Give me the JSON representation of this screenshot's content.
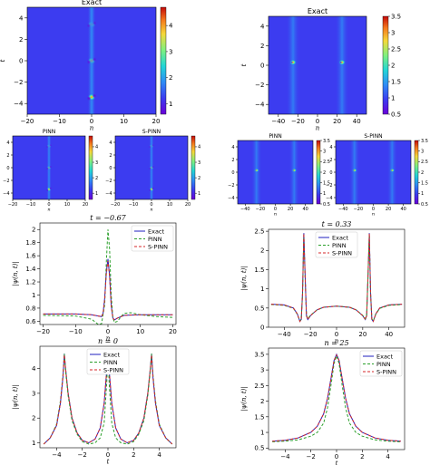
{
  "chart_data": [
    {
      "id": "hm_left_exact",
      "type": "heatmap",
      "title": "Exact",
      "xlabel": "n",
      "ylabel": "t",
      "xlim": [
        -20,
        20
      ],
      "ylim": [
        -5,
        5
      ],
      "xticks": [
        -20,
        -10,
        0,
        10,
        20
      ],
      "yticks": [
        -4,
        -2,
        0,
        2,
        4
      ],
      "colorbar": {
        "ticks": [
          1,
          2,
          3,
          4
        ],
        "range": [
          0.6,
          4.7
        ]
      },
      "peaks": [
        {
          "x": 0,
          "y": 3.4
        },
        {
          "x": 0,
          "y": 0
        },
        {
          "x": 0,
          "y": -3.4
        }
      ]
    },
    {
      "id": "hm_right_exact",
      "type": "heatmap",
      "title": "Exact",
      "xlabel": "n",
      "ylabel": "t",
      "xlim": [
        -50,
        50
      ],
      "ylim": [
        -5,
        5
      ],
      "xticks": [
        -40,
        -20,
        0,
        20,
        40
      ],
      "yticks": [
        -4,
        -2,
        0,
        2,
        4
      ],
      "colorbar": {
        "ticks": [
          0.5,
          1.0,
          1.5,
          2.0,
          2.5,
          3.0,
          3.5
        ],
        "range": [
          0.5,
          3.5
        ]
      },
      "peaks": [
        {
          "x": -25,
          "y": 0.3
        },
        {
          "x": 25,
          "y": 0.3
        }
      ]
    },
    {
      "id": "hm_left_pinn",
      "type": "heatmap",
      "title": "PINN",
      "xlabel": "n",
      "ylabel": "t",
      "xlim": [
        -20,
        20
      ],
      "ylim": [
        -5,
        5
      ],
      "xticks": [
        -20,
        -10,
        0,
        10,
        20
      ],
      "yticks": [
        -4,
        -2,
        0,
        2,
        4
      ],
      "colorbar": {
        "ticks": [
          1,
          2,
          3,
          4
        ],
        "range": [
          0.6,
          4.7
        ]
      }
    },
    {
      "id": "hm_left_spinn",
      "type": "heatmap",
      "title": "S-PINN",
      "xlabel": "n",
      "ylabel": "",
      "xlim": [
        -20,
        20
      ],
      "ylim": [
        -5,
        5
      ],
      "xticks": [
        -20,
        -10,
        0,
        10,
        20
      ],
      "yticks": [
        -4,
        -2,
        0,
        2,
        4
      ],
      "colorbar": {
        "ticks": [
          1,
          2,
          3,
          4
        ],
        "range": [
          0.6,
          4.7
        ]
      }
    },
    {
      "id": "hm_right_pinn",
      "type": "heatmap",
      "title": "PINN",
      "xlabel": "n",
      "ylabel": "",
      "xlim": [
        -50,
        50
      ],
      "ylim": [
        -5,
        5
      ],
      "xticks": [
        -40,
        -20,
        0,
        20,
        40
      ],
      "yticks": [
        -4,
        -2,
        0,
        2,
        4
      ],
      "colorbar": {
        "ticks": [
          0.5,
          1.0,
          1.5,
          2.0,
          2.5,
          3.0,
          3.5
        ],
        "range": [
          0.5,
          3.5
        ]
      }
    },
    {
      "id": "hm_right_spinn",
      "type": "heatmap",
      "title": "S-PINN",
      "xlabel": "n",
      "ylabel": "",
      "xlim": [
        -50,
        50
      ],
      "ylim": [
        -5,
        5
      ],
      "xticks": [
        -40,
        -20,
        0,
        20,
        40
      ],
      "yticks": [
        -4,
        -2,
        0,
        2,
        4
      ],
      "colorbar": {
        "ticks": [
          0.5,
          1.0,
          1.5,
          2.0,
          2.5,
          3.0,
          3.5
        ],
        "range": [
          0.5,
          3.5
        ]
      }
    },
    {
      "id": "line_left_t",
      "type": "line",
      "title": "t = −0.67",
      "xlabel": "n",
      "ylabel": "|ψ(n, t)|",
      "xlim": [
        -21,
        21
      ],
      "ylim": [
        0.55,
        2.1
      ],
      "xticks": [
        -20,
        -10,
        0,
        10,
        20
      ],
      "yticks": [
        0.6,
        0.8,
        1.0,
        1.2,
        1.4,
        1.6,
        1.8,
        2.0
      ],
      "legend": "top-right",
      "series": [
        {
          "name": "Exact",
          "color": "#1f1fbf",
          "dash": "solid",
          "x": [
            -20,
            -10,
            -5,
            -3,
            -2,
            -1.5,
            -1,
            -0.5,
            0,
            0.5,
            1,
            1.5,
            2,
            3,
            5,
            10,
            20
          ],
          "y": [
            0.71,
            0.71,
            0.7,
            0.68,
            0.67,
            0.72,
            0.95,
            1.35,
            1.55,
            1.3,
            0.85,
            0.65,
            0.62,
            0.65,
            0.69,
            0.7,
            0.7
          ]
        },
        {
          "name": "PINN",
          "color": "#2ca02c",
          "dash": "dashed",
          "x": [
            -20,
            -10,
            -5,
            -3,
            -2,
            -1,
            -0.5,
            0,
            0.5,
            1,
            1.5,
            2,
            3,
            4,
            5,
            7,
            10,
            15,
            20
          ],
          "y": [
            0.69,
            0.68,
            0.63,
            0.55,
            0.56,
            0.85,
            1.5,
            2.0,
            1.7,
            1.0,
            0.66,
            0.58,
            0.6,
            0.67,
            0.72,
            0.73,
            0.7,
            0.67,
            0.66
          ]
        },
        {
          "name": "S-PINN",
          "color": "#d62728",
          "dash": "dashed",
          "x": [
            -20,
            -10,
            -5,
            -3,
            -2,
            -1.5,
            -1,
            -0.5,
            0,
            0.5,
            1,
            1.5,
            2,
            3,
            5,
            10,
            20
          ],
          "y": [
            0.71,
            0.71,
            0.7,
            0.68,
            0.67,
            0.72,
            0.93,
            1.32,
            1.52,
            1.28,
            0.83,
            0.65,
            0.62,
            0.65,
            0.69,
            0.7,
            0.7
          ]
        }
      ]
    },
    {
      "id": "line_right_t",
      "type": "line",
      "title": "t = 0.33",
      "xlabel": "n",
      "ylabel": "|ψ(n, t)|",
      "xlim": [
        -52,
        52
      ],
      "ylim": [
        0,
        2.55
      ],
      "xticks": [
        -40,
        -20,
        0,
        20,
        40
      ],
      "yticks": [
        0.0,
        0.5,
        1.0,
        1.5,
        2.0,
        2.5
      ],
      "legend": "top-center",
      "series": [
        {
          "name": "Exact",
          "color": "#1f1fbf",
          "dash": "solid",
          "x": [
            -50,
            -40,
            -33,
            -30,
            -28,
            -27,
            -26,
            -25,
            -24,
            -23,
            -22,
            -20,
            -15,
            -10,
            0,
            10,
            15,
            20,
            22,
            23,
            24,
            25,
            26,
            27,
            28,
            30,
            33,
            40,
            50
          ],
          "y": [
            0.6,
            0.58,
            0.5,
            0.35,
            0.15,
            0.2,
            0.9,
            2.45,
            1.3,
            0.3,
            0.2,
            0.3,
            0.45,
            0.52,
            0.55,
            0.52,
            0.45,
            0.3,
            0.2,
            0.3,
            1.3,
            2.45,
            0.9,
            0.2,
            0.15,
            0.35,
            0.5,
            0.58,
            0.6
          ]
        },
        {
          "name": "PINN",
          "color": "#2ca02c",
          "dash": "dashed",
          "x": [
            -50,
            -40,
            -33,
            -30,
            -28,
            -27,
            -26,
            -25,
            -24,
            -23,
            -22,
            -20,
            -15,
            -10,
            0,
            10,
            15,
            20,
            22,
            23,
            24,
            25,
            26,
            27,
            28,
            30,
            33,
            40,
            50
          ],
          "y": [
            0.59,
            0.57,
            0.49,
            0.34,
            0.16,
            0.22,
            0.85,
            2.4,
            1.25,
            0.32,
            0.22,
            0.31,
            0.45,
            0.52,
            0.55,
            0.52,
            0.45,
            0.31,
            0.22,
            0.32,
            1.25,
            2.4,
            0.85,
            0.22,
            0.16,
            0.34,
            0.49,
            0.57,
            0.59
          ]
        },
        {
          "name": "S-PINN",
          "color": "#d62728",
          "dash": "dashed",
          "x": [
            -50,
            -40,
            -33,
            -30,
            -28,
            -27,
            -26,
            -25,
            -24,
            -23,
            -22,
            -20,
            -15,
            -10,
            0,
            10,
            15,
            20,
            22,
            23,
            24,
            25,
            26,
            27,
            28,
            30,
            33,
            40,
            50
          ],
          "y": [
            0.6,
            0.58,
            0.5,
            0.35,
            0.15,
            0.2,
            0.9,
            2.44,
            1.3,
            0.3,
            0.2,
            0.3,
            0.45,
            0.52,
            0.55,
            0.52,
            0.45,
            0.3,
            0.2,
            0.3,
            1.3,
            2.44,
            0.9,
            0.2,
            0.15,
            0.35,
            0.5,
            0.58,
            0.6
          ]
        }
      ]
    },
    {
      "id": "line_left_n",
      "type": "line",
      "title": "n = 0",
      "xlabel": "t",
      "ylabel": "|ψ(n, t)|",
      "xlim": [
        -5.3,
        5.3
      ],
      "ylim": [
        0.8,
        4.9
      ],
      "xticks": [
        -4,
        -2,
        0,
        2,
        4
      ],
      "yticks": [
        1,
        2,
        3,
        4
      ],
      "legend": "top-center",
      "series": [
        {
          "name": "Exact",
          "color": "#1f1fbf",
          "dash": "solid",
          "x": [
            -5,
            -4.5,
            -4,
            -3.7,
            -3.5,
            -3.4,
            -3.3,
            -3.1,
            -2.8,
            -2.4,
            -2,
            -1.5,
            -1,
            -0.6,
            -0.3,
            -0.1,
            0,
            0.1,
            0.3,
            0.6,
            1,
            1.5,
            2,
            2.4,
            2.8,
            3.1,
            3.3,
            3.4,
            3.5,
            3.7,
            4,
            4.5,
            5
          ],
          "y": [
            0.95,
            1.2,
            1.7,
            2.6,
            3.7,
            4.6,
            4.0,
            3.0,
            2.0,
            1.4,
            1.1,
            1.0,
            1.15,
            1.6,
            2.6,
            3.9,
            4.6,
            3.9,
            2.6,
            1.6,
            1.15,
            1.0,
            1.1,
            1.4,
            2.0,
            3.0,
            4.0,
            4.6,
            3.7,
            2.6,
            1.7,
            1.2,
            0.95
          ]
        },
        {
          "name": "PINN",
          "color": "#2ca02c",
          "dash": "dashed",
          "x": [
            -5,
            -4.5,
            -4,
            -3.7,
            -3.5,
            -3.4,
            -3.3,
            -3.1,
            -2.8,
            -2.4,
            -2,
            -1.5,
            -1,
            -0.6,
            -0.3,
            -0.1,
            0,
            0.1,
            0.3,
            0.6,
            1,
            1.5,
            2,
            2.4,
            2.8,
            3.1,
            3.3,
            3.4,
            3.5,
            3.7,
            4,
            4.5,
            5
          ],
          "y": [
            0.95,
            1.2,
            1.75,
            2.7,
            3.8,
            4.6,
            3.9,
            2.9,
            1.9,
            1.35,
            1.05,
            0.95,
            1.0,
            1.2,
            1.8,
            3.4,
            4.5,
            3.4,
            1.8,
            1.2,
            1.0,
            0.95,
            1.05,
            1.35,
            1.9,
            2.9,
            3.9,
            4.6,
            3.8,
            2.7,
            1.75,
            1.2,
            0.95
          ]
        },
        {
          "name": "S-PINN",
          "color": "#d62728",
          "dash": "dashed",
          "x": [
            -5,
            -4.5,
            -4,
            -3.7,
            -3.5,
            -3.4,
            -3.3,
            -3.1,
            -2.8,
            -2.4,
            -2,
            -1.5,
            -1,
            -0.6,
            -0.3,
            -0.1,
            0,
            0.1,
            0.3,
            0.6,
            1,
            1.5,
            2,
            2.4,
            2.8,
            3.1,
            3.3,
            3.4,
            3.5,
            3.7,
            4,
            4.5,
            5
          ],
          "y": [
            0.95,
            1.2,
            1.7,
            2.6,
            3.7,
            4.55,
            4.0,
            3.0,
            2.0,
            1.4,
            1.1,
            1.0,
            1.15,
            1.6,
            2.6,
            3.9,
            4.55,
            3.9,
            2.6,
            1.6,
            1.15,
            1.0,
            1.1,
            1.4,
            2.0,
            3.0,
            4.0,
            4.55,
            3.7,
            2.6,
            1.7,
            1.2,
            0.95
          ]
        }
      ]
    },
    {
      "id": "line_right_n",
      "type": "line",
      "title": "n = 25",
      "xlabel": "t",
      "ylabel": "|ψ(n, t)|",
      "xlim": [
        -5.3,
        5.3
      ],
      "ylim": [
        0.45,
        3.7
      ],
      "xticks": [
        -4,
        -2,
        0,
        2,
        4
      ],
      "yticks": [
        0.5,
        1.0,
        1.5,
        2.0,
        2.5,
        3.0,
        3.5
      ],
      "legend": "top-right",
      "series": [
        {
          "name": "Exact",
          "color": "#1f1fbf",
          "dash": "solid",
          "x": [
            -5,
            -4,
            -3,
            -2,
            -1.5,
            -1,
            -0.7,
            -0.4,
            -0.2,
            0,
            0.2,
            0.4,
            0.7,
            1,
            1.5,
            2,
            3,
            4,
            5
          ],
          "y": [
            0.72,
            0.75,
            0.82,
            1.0,
            1.2,
            1.6,
            2.1,
            2.8,
            3.3,
            3.5,
            3.3,
            2.8,
            2.1,
            1.6,
            1.2,
            1.0,
            0.82,
            0.75,
            0.72
          ]
        },
        {
          "name": "PINN",
          "color": "#2ca02c",
          "dash": "dashed",
          "x": [
            -5,
            -4,
            -3,
            -2,
            -1.5,
            -1,
            -0.7,
            -0.4,
            -0.2,
            0,
            0.2,
            0.4,
            0.7,
            1,
            1.5,
            2,
            3,
            4,
            5
          ],
          "y": [
            0.7,
            0.72,
            0.76,
            0.88,
            1.0,
            1.3,
            1.8,
            2.6,
            3.2,
            3.45,
            3.2,
            2.6,
            1.8,
            1.3,
            1.0,
            0.88,
            0.76,
            0.72,
            0.7
          ]
        },
        {
          "name": "S-PINN",
          "color": "#d62728",
          "dash": "dashed",
          "x": [
            -5,
            -4,
            -3,
            -2,
            -1.5,
            -1,
            -0.7,
            -0.4,
            -0.2,
            0,
            0.2,
            0.4,
            0.7,
            1,
            1.5,
            2,
            3,
            4,
            5
          ],
          "y": [
            0.72,
            0.75,
            0.82,
            1.0,
            1.2,
            1.6,
            2.1,
            2.8,
            3.3,
            3.48,
            3.3,
            2.8,
            2.1,
            1.6,
            1.2,
            1.0,
            0.82,
            0.75,
            0.72
          ]
        }
      ]
    }
  ]
}
